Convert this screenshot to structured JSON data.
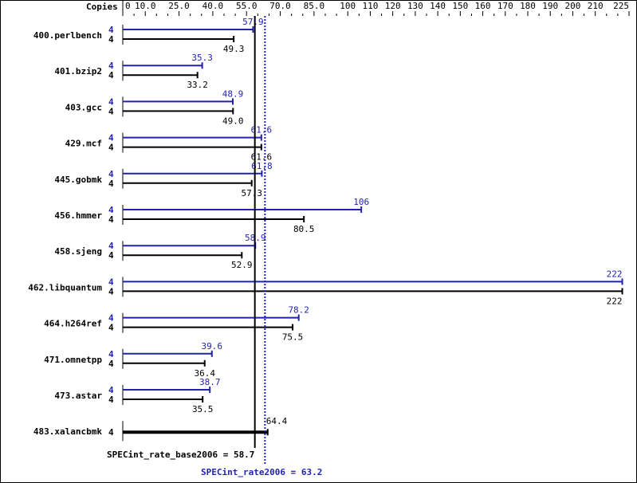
{
  "chart_data": {
    "type": "bar",
    "title": "",
    "copies_header": "Copies",
    "xlim": [
      0,
      225
    ],
    "tick_labels": [
      "0",
      "10.0",
      "25.0",
      "40.0",
      "55.0",
      "70.0",
      "85.0",
      "100",
      "110",
      "120",
      "130",
      "140",
      "150",
      "160",
      "170",
      "180",
      "190",
      "200",
      "210",
      "225"
    ],
    "tick_values": [
      0,
      10,
      25,
      40,
      55,
      70,
      85,
      100,
      110,
      120,
      130,
      140,
      150,
      160,
      170,
      180,
      190,
      200,
      210,
      225
    ],
    "minor_tick_step": 5,
    "categories": [
      "400.perlbench",
      "401.bzip2",
      "403.gcc",
      "429.mcf",
      "445.gobmk",
      "456.hmmer",
      "458.sjeng",
      "462.libquantum",
      "464.h264ref",
      "471.omnetpp",
      "473.astar",
      "483.xalancbmk"
    ],
    "series": [
      {
        "name": "peak",
        "color": "#2222b0",
        "copies": [
          4,
          4,
          4,
          4,
          4,
          4,
          4,
          4,
          4,
          4,
          4,
          null
        ],
        "values": [
          57.9,
          35.3,
          48.9,
          61.6,
          61.8,
          106,
          58.9,
          222,
          78.2,
          39.6,
          38.7,
          null
        ],
        "labels": [
          "57.9",
          "35.3",
          "48.9",
          "61.6",
          "61.8",
          "106",
          "58.9",
          "222",
          "78.2",
          "39.6",
          "38.7",
          ""
        ]
      },
      {
        "name": "base",
        "color": "#000000",
        "copies": [
          4,
          4,
          4,
          4,
          4,
          4,
          4,
          4,
          4,
          4,
          4,
          4
        ],
        "values": [
          49.3,
          33.2,
          49.0,
          61.6,
          57.3,
          80.5,
          52.9,
          222,
          75.5,
          36.4,
          35.5,
          64.4
        ],
        "labels": [
          "49.3",
          "33.2",
          "49.0",
          "61.6",
          "57.3",
          "80.5",
          "52.9",
          "222",
          "75.5",
          "36.4",
          "35.5",
          "64.4"
        ]
      }
    ],
    "summary": {
      "base_label": "SPECint_rate_base2006 = 58.7",
      "base_value": 58.7,
      "peak_label": "SPECint_rate2006 = 63.2",
      "peak_value": 63.2
    }
  }
}
